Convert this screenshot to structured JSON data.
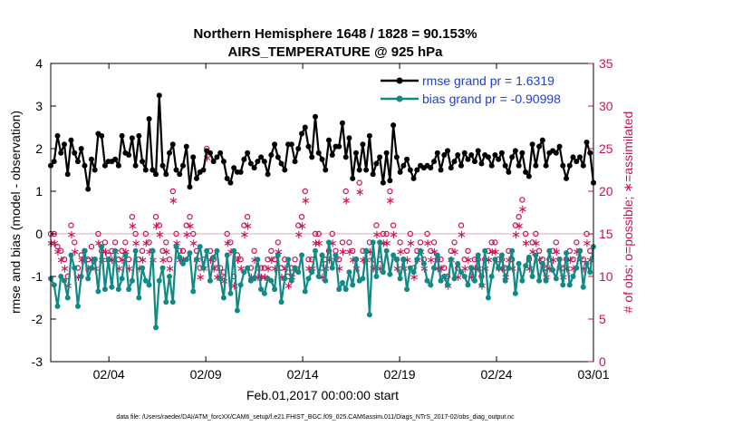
{
  "chart_data": {
    "type": "line",
    "title_line1": "Northern Hemisphere 1648 / 1828 = 90.153%",
    "title_line2": "AIRS_TEMPERATURE @ 925 hPa",
    "xlabel": "Feb.01,2017 00:00:00 start",
    "ylabel_left": "rmse and bias (model - observation)",
    "ylabel_right": "# of obs: o=possible; ∗=assimilated",
    "footer": "data file: /Users/raeder/DAI/ATM_forcXX/CAM6_setup/f.e21.FHIST_BGC.f09_025.CAM6assim.011/Diags_NTrS_2017-02/obs_diag_output.nc",
    "x_range": [
      0,
      28
    ],
    "x_ticks": [
      3,
      8,
      13,
      18,
      23,
      28
    ],
    "x_tick_labels": [
      "02/04",
      "02/09",
      "02/14",
      "02/19",
      "02/24",
      "03/01"
    ],
    "ylim_left": [
      -3,
      4
    ],
    "y_ticks_left": [
      -3,
      -2,
      -1,
      0,
      1,
      2,
      3,
      4
    ],
    "ylim_right": [
      0,
      35
    ],
    "y_ticks_right": [
      0,
      5,
      10,
      15,
      20,
      25,
      30,
      35
    ],
    "legend": [
      {
        "name": "rmse grand pr = 1.6319",
        "color": "#000000"
      },
      {
        "name": "bias grand pr = -0.90998",
        "color": "#0f8a86"
      }
    ],
    "colors": {
      "rmse": "#000000",
      "bias": "#0f8a86",
      "obs": "#cc1155"
    },
    "series": [
      {
        "name": "rmse",
        "values": [
          1.6,
          1.7,
          2.3,
          1.9,
          2.1,
          1.4,
          2.2,
          1.9,
          1.7,
          2.0,
          1.6,
          1.05,
          1.75,
          1.5,
          2.35,
          2.3,
          1.6,
          1.7,
          1.7,
          1.75,
          1.6,
          2.3,
          1.9,
          1.85,
          2.25,
          1.6,
          2.3,
          1.7,
          1.5,
          2.7,
          1.5,
          1.4,
          3.25,
          1.6,
          1.4,
          1.9,
          2.1,
          1.5,
          1.4,
          1.6,
          2.05,
          1.1,
          1.8,
          1.3,
          1.45,
          1.5,
          1.95,
          1.9,
          1.7,
          1.8,
          1.9,
          1.7,
          1.3,
          1.2,
          1.55,
          1.45,
          1.45,
          1.75,
          1.9,
          1.65,
          1.55,
          1.7,
          1.8,
          1.7,
          1.4,
          1.85,
          2.1,
          1.8,
          1.65,
          1.5,
          2.1,
          2.1,
          1.7,
          2.0,
          2.35,
          2.5,
          2.05,
          1.8,
          2.75,
          1.9,
          1.75,
          1.5,
          2.2,
          1.85,
          2.05,
          2.05,
          2.6,
          1.8,
          2.25,
          1.3,
          1.9,
          1.5,
          2.1,
          1.5,
          2.3,
          1.4,
          1.65,
          1.8,
          1.2,
          1.9,
          1.25,
          2.55,
          1.8,
          1.45,
          1.6,
          1.75,
          1.5,
          1.3,
          1.5,
          1.6,
          1.55,
          1.6,
          1.55,
          1.7,
          1.9,
          1.5,
          1.85,
          1.95,
          1.55,
          1.7,
          1.85,
          1.6,
          1.9,
          1.75,
          1.85,
          1.7,
          1.95,
          1.65,
          1.85,
          1.8,
          1.6,
          1.85,
          1.75,
          1.9,
          1.6,
          1.45,
          1.8,
          1.95,
          1.6,
          1.9,
          1.45,
          1.35,
          2.1,
          1.6,
          2.05,
          2.2,
          1.6,
          1.9,
          1.95,
          1.9,
          2.05,
          1.6,
          1.3,
          1.6,
          1.8,
          1.7,
          1.8,
          1.6,
          2.15,
          1.9,
          1.2
        ]
      },
      {
        "name": "bias",
        "values": [
          -1.05,
          -1.2,
          -1.7,
          -1.0,
          -1.1,
          -1.5,
          -0.5,
          -0.8,
          -1.7,
          -1.0,
          -0.4,
          -1.05,
          -0.8,
          -0.6,
          -1.35,
          -0.3,
          -1.3,
          -0.6,
          -1.25,
          -0.4,
          -1.3,
          -1.05,
          -0.5,
          -1.3,
          -1.1,
          -0.4,
          -1.5,
          -0.8,
          -1.1,
          -1.2,
          -0.4,
          -2.2,
          -1.1,
          -0.8,
          -1.6,
          -1.0,
          -1.6,
          -0.3,
          -0.55,
          -0.7,
          -0.6,
          -0.45,
          -1.35,
          -0.6,
          -0.3,
          -0.8,
          -0.4,
          -1.1,
          -0.55,
          -0.4,
          -1.05,
          -1.5,
          -0.5,
          -1.4,
          -0.4,
          -1.8,
          -1.2,
          -0.9,
          -0.8,
          -1.1,
          -1.05,
          -0.6,
          -1.3,
          -1.4,
          -1.05,
          -1.1,
          -1.3,
          -0.5,
          -1.6,
          -1.05,
          -0.6,
          -1.1,
          -0.8,
          -0.9,
          -0.5,
          -1.35,
          -1.05,
          -0.9,
          -0.4,
          -1.0,
          -0.5,
          -1.1,
          -0.2,
          -0.8,
          -0.5,
          -1.3,
          -1.15,
          -1.3,
          -0.9,
          -1.2,
          -0.6,
          -1.1,
          -1.05,
          -0.4,
          -1.9,
          -0.2,
          -1.0,
          -0.2,
          -0.9,
          -0.4,
          -0.95,
          -0.5,
          -0.6,
          -1.05,
          -0.6,
          -1.3,
          -0.8,
          -0.9,
          -0.6,
          -0.4,
          -0.7,
          -1.1,
          -1.2,
          -0.8,
          -0.5,
          -1.1,
          -1.0,
          -1.2,
          -0.6,
          -1.05,
          -0.7,
          -0.9,
          -1.0,
          -1.2,
          -0.8,
          -1.1,
          -0.5,
          -1.2,
          -0.4,
          -1.5,
          -1.0,
          -0.6,
          -0.8,
          -0.5,
          -1.1,
          -0.8,
          -0.4,
          -1.4,
          -0.7,
          -1.1,
          -0.75,
          -0.55,
          -1.0,
          -0.5,
          -1.1,
          -0.7,
          -1.1,
          -0.4,
          -0.85,
          -1.05,
          -0.6,
          -1.2,
          -0.45,
          -1.2,
          -1.0,
          -0.8,
          -0.4,
          -1.25,
          -0.7,
          -0.9,
          -0.3
        ]
      },
      {
        "name": "possible obs",
        "values": [
          15,
          15,
          13.5,
          13,
          12,
          10,
          16,
          14,
          11,
          12.5,
          13,
          12,
          13.5,
          12,
          15,
          13,
          14,
          12.5,
          13,
          14,
          12,
          13,
          14,
          12,
          17,
          15,
          12,
          13,
          15,
          14,
          13,
          17,
          16,
          13,
          14,
          12,
          20,
          15,
          13,
          13,
          16,
          17,
          15,
          13,
          11,
          12,
          25,
          13,
          12,
          11,
          11,
          10.5,
          15,
          14,
          10,
          12.5,
          12,
          16,
          17,
          11,
          13,
          11,
          11,
          11,
          12,
          13,
          12,
          14,
          11,
          12,
          10,
          11,
          12,
          16,
          17,
          20,
          12,
          12,
          15,
          15,
          11,
          12,
          13,
          15,
          13,
          12,
          14,
          20,
          14,
          13,
          12,
          21,
          13,
          13,
          14,
          12,
          16,
          12,
          15,
          15,
          20,
          16,
          12,
          14,
          12,
          13,
          15,
          11,
          13,
          14,
          12,
          15,
          13,
          14,
          12,
          12,
          11,
          10,
          13,
          14,
          11,
          16,
          12,
          13,
          11,
          12,
          12,
          10,
          12,
          13,
          14,
          14,
          12,
          12,
          11,
          13,
          12,
          16,
          17,
          19,
          15,
          12,
          14,
          15,
          13,
          12,
          11,
          12,
          13,
          14,
          12,
          11,
          12,
          13,
          12,
          14,
          13,
          12,
          15,
          13
        ]
      },
      {
        "name": "assimilated obs",
        "values": [
          14,
          14,
          13,
          12,
          11,
          9,
          15,
          13,
          10,
          12,
          12,
          11,
          12,
          11,
          14,
          12,
          13,
          12,
          12,
          13,
          11,
          12,
          13,
          11,
          16,
          14,
          11,
          12,
          14,
          13,
          12,
          16,
          15,
          12,
          13,
          11,
          19,
          14,
          12,
          12,
          15,
          16,
          14,
          12,
          10,
          11,
          24,
          12,
          11,
          10,
          10,
          9.5,
          14,
          13,
          9,
          12,
          11,
          15,
          16,
          10,
          12,
          10,
          10,
          10,
          11,
          12,
          11,
          13,
          10,
          11,
          9,
          10,
          11,
          15,
          16,
          19,
          11,
          11,
          14,
          14,
          10,
          11,
          12,
          14,
          12,
          11,
          13,
          19,
          13,
          12,
          11,
          20,
          12,
          12,
          13,
          11,
          15,
          11,
          14,
          14,
          19,
          15,
          11,
          13,
          11,
          12,
          14,
          10,
          12,
          13,
          11,
          14,
          12,
          13,
          11,
          11,
          10,
          9,
          12,
          13,
          10,
          15,
          11,
          12,
          10,
          11,
          11,
          9,
          11,
          12,
          13,
          13,
          11,
          11,
          10,
          12,
          11,
          15,
          16,
          18,
          14,
          11,
          13,
          14,
          12,
          11,
          10,
          11,
          12,
          13,
          11,
          10,
          11,
          12,
          11,
          13,
          12,
          11,
          14,
          12
        ]
      }
    ]
  }
}
